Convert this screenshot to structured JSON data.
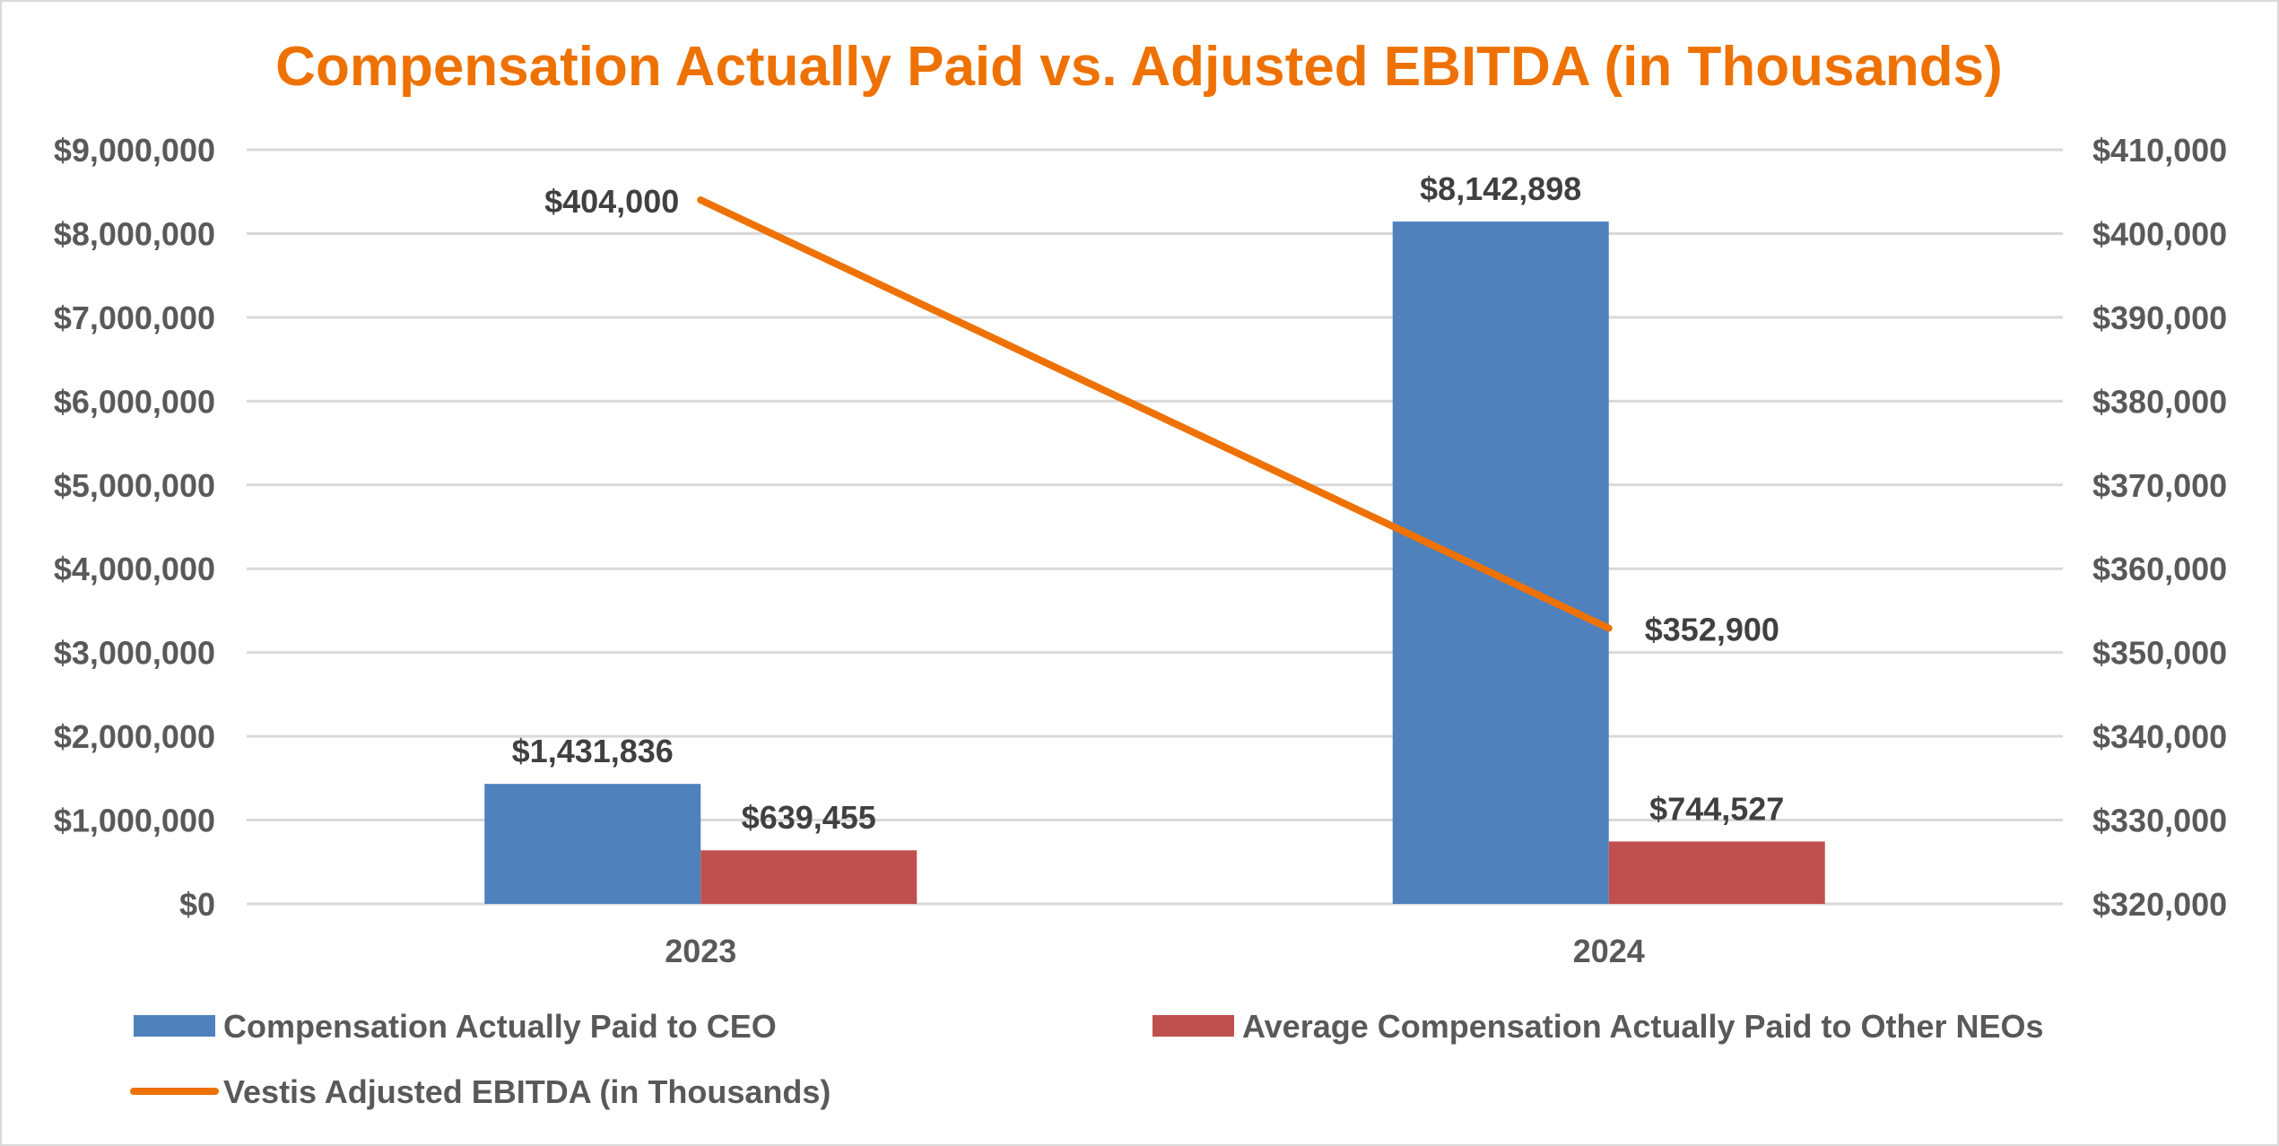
{
  "chart_data": {
    "type": "bar+line",
    "title": "Compensation Actually Paid vs. Adjusted EBITDA (in Thousands)",
    "categories": [
      "2023",
      "2024"
    ],
    "y_left": {
      "range": [
        0,
        9000000
      ],
      "ticks": [
        "$0",
        "$1,000,000",
        "$2,000,000",
        "$3,000,000",
        "$4,000,000",
        "$5,000,000",
        "$6,000,000",
        "$7,000,000",
        "$8,000,000",
        "$9,000,000"
      ],
      "tick_values": [
        0,
        1000000,
        2000000,
        3000000,
        4000000,
        5000000,
        6000000,
        7000000,
        8000000,
        9000000
      ]
    },
    "y_right": {
      "range": [
        320000,
        410000
      ],
      "ticks": [
        "$320,000",
        "$330,000",
        "$340,000",
        "$350,000",
        "$360,000",
        "$370,000",
        "$380,000",
        "$390,000",
        "$400,000",
        "$410,000"
      ],
      "tick_values": [
        320000,
        330000,
        340000,
        350000,
        360000,
        370000,
        380000,
        390000,
        400000,
        410000
      ]
    },
    "grid": true,
    "legend_position": "bottom",
    "series": [
      {
        "name": "Compensation Actually Paid to CEO",
        "type": "bar",
        "axis": "left",
        "color": "#4F81BD",
        "values": [
          1431836,
          8142898
        ],
        "labels": [
          "$1,431,836",
          "$8,142,898"
        ]
      },
      {
        "name": "Average Compensation Actually Paid to Other NEOs",
        "type": "bar",
        "axis": "left",
        "color": "#C0504D",
        "values": [
          639455,
          744527
        ],
        "labels": [
          "$639,455",
          "$744,527"
        ]
      },
      {
        "name": "Vestis Adjusted EBITDA (in Thousands)",
        "type": "line",
        "axis": "right",
        "color": "#EE7203",
        "values": [
          404000,
          352900
        ],
        "labels": [
          "$404,000",
          "$352,900"
        ]
      }
    ],
    "title_color": "#EE7203"
  }
}
